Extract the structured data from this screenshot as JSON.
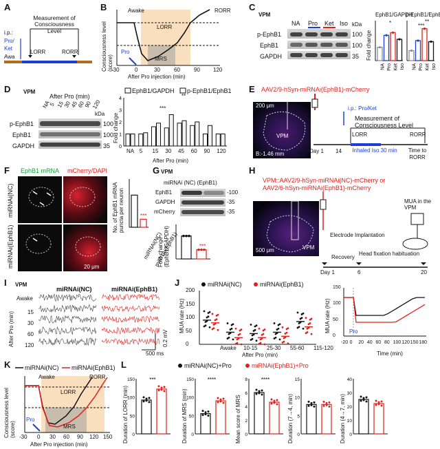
{
  "panel_letters": [
    "A",
    "B",
    "C",
    "D",
    "E",
    "F",
    "G",
    "H",
    "I",
    "J",
    "K",
    "L"
  ],
  "colors": {
    "black": "#111111",
    "red": "#e0201b",
    "blue": "#1b3fd6",
    "orange": "#f6c48a",
    "grey": "#8c8c8c"
  },
  "A": {
    "measure": "Measurement of Consciousness Level",
    "ip": "i.p.:",
    "pro": "Pro/",
    "ket": "Ket",
    "awake": "Awa",
    "lorr": "LORR",
    "rorr": "RORR"
  },
  "B": {
    "ylabel": "Consciousness level (score)",
    "xlabel": "After Pro injection (min)",
    "awake": "Awake",
    "rorr": "RORR",
    "lorr": "LORR",
    "mrs": "MRS",
    "pro": "Pro",
    "xticks": [
      "-30",
      "0",
      "30",
      "60",
      "90",
      "120"
    ]
  },
  "C": {
    "region": "VPM",
    "lanes": [
      "NA",
      "Pro",
      "Ket",
      "Iso"
    ],
    "rows": [
      "p-EphB1",
      "EphB1",
      "GAPDH"
    ],
    "kda": "kDa",
    "mw": [
      "100",
      "100",
      "35"
    ],
    "chart1_title": "EphB1/GAPDH",
    "chart2_title": "p-EphB1/EphB1",
    "ylabel": "Fold change",
    "stars": [
      "*",
      "**",
      "*",
      "***",
      "**"
    ]
  },
  "D": {
    "region": "VPM",
    "header": "After Pro (min)",
    "lanes": [
      "NA",
      "5",
      "15",
      "30",
      "45",
      "60",
      "90",
      "120"
    ],
    "rows": [
      "p-EphB1",
      "EphB1",
      "GAPDH"
    ],
    "kda": "kDa",
    "mw": [
      "100",
      "100",
      "35"
    ],
    "legend": [
      "EphB1/GAPDH",
      "p-EphB1/EphB1"
    ],
    "ylabel": "Fold change",
    "xlabel": "After Pro (min)",
    "xticks": [
      "NA",
      "5",
      "15",
      "30",
      "45",
      "60",
      "90",
      "120"
    ],
    "stars": [
      "**",
      "**",
      "***",
      "**",
      "*",
      "##"
    ]
  },
  "E": {
    "vector": "AAV2/9-hSyn-miRNAi(EphB1)-mCherry",
    "scale": "200 μm",
    "bregma": "B:-1.46 mm",
    "vpm": "VPM",
    "ip": "i.p.: Pro/Ket",
    "measure": "Measurement of Consciousness Level",
    "lorr": "LORR",
    "rorr": "RORR",
    "day1": "Day 1",
    "day14": "14",
    "iso": "Inhaled Iso 30 min",
    "time": "Time to RORR"
  },
  "F": {
    "title1": "EphB1 mRNA",
    "title2": "mCherry/DAPI",
    "row1": "miRNAi(NC)",
    "row2": "miRNAi(EphB1)",
    "scale": "20 μm",
    "ylabel": "No. of EphB1 mRNA puncta per neuron",
    "xticks": [
      "miRNAi(NC)",
      "miRNAi(EphB1)"
    ],
    "stars": "***"
  },
  "G": {
    "region": "VPM",
    "header": "miRNAi (NC) (EphB1)",
    "rows": [
      "EphB1",
      "GAPDH",
      "mCherry"
    ],
    "mw": [
      "-100",
      "-35",
      "-35"
    ],
    "ylabel": "Fold change (EphB1/GAPDH)",
    "stars": "***"
  },
  "H": {
    "line1": "VPM::AAV2/9-hSyn-miRNAi(NC)-mCherry or",
    "line2": "AAV2/6-hSyn-miRNAi(EphB1)-mCherry",
    "scale": "500 μm",
    "vpm": "VPM",
    "mua": "MUA in the VPM",
    "electrode": "Electrode Implantation",
    "recovery": "Recovery",
    "head": "Head fixation habituation",
    "days": [
      "Day 1",
      "6",
      "20"
    ]
  },
  "I": {
    "region": "VPM",
    "col1": "miRNAi(NC)",
    "col2": "miRNAi(EphB1)",
    "rows": [
      "Awake",
      "15",
      "30",
      "60",
      "120"
    ],
    "ylabel": "After Pro (min)",
    "scale_v": "0.2 mV",
    "scale_h": "500 ms"
  },
  "J": {
    "legend": [
      "miRNAi(NC)",
      "miRNAi(EphB1)"
    ],
    "ylabel": "MUA rate (Hz)",
    "xlabel": "After Pro (min)",
    "xticks": [
      "Awake",
      "10-15",
      "25-30",
      "55-60",
      "115-120"
    ],
    "yticks": [
      "0",
      "50",
      "100",
      "150",
      "200"
    ],
    "stars": [
      "****",
      "****",
      "***",
      "****",
      "**",
      "*",
      "**",
      "****"
    ],
    "time_ylabel": "MUA rate (Hz)",
    "time_xlabel": "Time (min)",
    "time_xticks": [
      "-20",
      "0",
      "20",
      "40",
      "60",
      "80",
      "100",
      "120",
      "150",
      "180"
    ],
    "time_yticks": [
      "0",
      "50",
      "100",
      "150"
    ],
    "pro": "Pro"
  },
  "K": {
    "legend": [
      "miRNAi(NC)",
      "miRNAi(EphB1)"
    ],
    "awake": "Awake",
    "rorr": "RORR",
    "lorr": "LORR",
    "mrs": "MRS",
    "pro": "Pro",
    "ylabel": "Consciousness level (score)",
    "xlabel": "After Pro injection (min)",
    "xticks": [
      "-30",
      "0",
      "30",
      "60",
      "90",
      "120",
      "150"
    ]
  },
  "L": {
    "legend": [
      "miRNAi(NC)+Pro",
      "miRNAi(EphB1)+Pro"
    ],
    "charts": [
      {
        "ylabel": "Duration of LORR (min)",
        "yticks": [
          "0",
          "50",
          "100",
          "150"
        ],
        "stars": "***",
        "nc": 92,
        "eph": 122
      },
      {
        "ylabel": "Duration of MRS (min)",
        "yticks": [
          "0",
          "50",
          "100",
          "150"
        ],
        "stars": "****",
        "nc": 55,
        "eph": 90
      },
      {
        "ylabel": "Mean score of MRS",
        "yticks": [
          "0",
          "2",
          "4",
          "6",
          "8"
        ],
        "stars": "****",
        "nc": 6.0,
        "eph": 4.6
      },
      {
        "ylabel": "Duration (7→4, min)",
        "yticks": [
          "0",
          "5",
          "10",
          "15"
        ],
        "stars": "",
        "nc": 8,
        "eph": 8
      },
      {
        "ylabel": "Duration (4→7, min)",
        "yticks": [
          "0",
          "10",
          "20",
          "30",
          "40"
        ],
        "stars": "",
        "nc": 25,
        "eph": 22
      }
    ]
  },
  "chart_data": [
    {
      "type": "bar",
      "id": "C1",
      "title": "EphB1/GAPDH",
      "categories": [
        "NA",
        "Pro",
        "Ket",
        "Iso"
      ],
      "values": [
        1.0,
        1.9,
        2.1,
        1.6
      ],
      "ylabel": "Fold change"
    },
    {
      "type": "bar",
      "id": "C2",
      "title": "p-EphB1/EphB1",
      "categories": [
        "NA",
        "Pro",
        "Ket",
        "Iso"
      ],
      "values": [
        1.0,
        2.0,
        3.2,
        1.9
      ],
      "ylabel": "Fold change"
    },
    {
      "type": "bar",
      "id": "D",
      "categories": [
        "NA",
        "5",
        "15",
        "30",
        "45",
        "60",
        "90",
        "120"
      ],
      "series": [
        {
          "name": "EphB1/GAPDH",
          "values": [
            1.0,
            1.0,
            1.6,
            1.5,
            1.9,
            1.7,
            1.0,
            1.0
          ]
        },
        {
          "name": "p-EphB1/EphB1",
          "values": [
            1.0,
            1.1,
            1.9,
            2.6,
            2.1,
            2.0,
            1.7,
            1.0
          ]
        }
      ],
      "ylabel": "Fold change",
      "xlabel": "After Pro (min)",
      "ylim": [
        0,
        4
      ]
    },
    {
      "type": "bar",
      "id": "F",
      "categories": [
        "miRNAi(NC)",
        "miRNAi(EphB1)"
      ],
      "values": [
        10,
        2.5
      ],
      "ylabel": "No. of EphB1 mRNA puncta per neuron"
    },
    {
      "type": "bar",
      "id": "G",
      "categories": [
        "NC",
        "EphB1"
      ],
      "values": [
        1.0,
        0.4
      ],
      "ylabel": "Fold change (EphB1/GAPDH)"
    },
    {
      "type": "bar",
      "id": "J",
      "categories": [
        "Awake",
        "10-15",
        "25-30",
        "55-60",
        "115-120"
      ],
      "series": [
        {
          "name": "miRNAi(NC)",
          "values": [
            90,
            45,
            40,
            45,
            85
          ]
        },
        {
          "name": "miRNAi(EphB1)",
          "values": [
            80,
            25,
            25,
            30,
            65
          ]
        }
      ],
      "ylabel": "MUA rate (Hz)",
      "xlabel": "After Pro (min)",
      "ylim": [
        0,
        200
      ]
    }
  ]
}
